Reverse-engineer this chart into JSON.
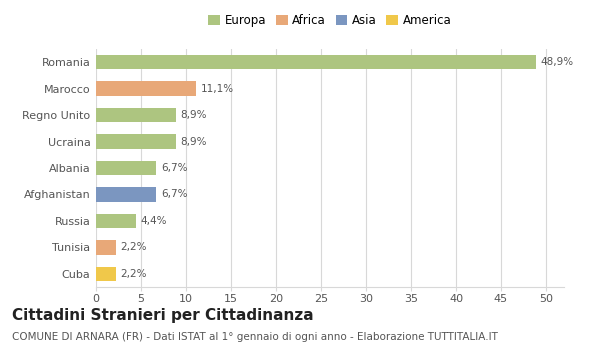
{
  "categories": [
    "Romania",
    "Marocco",
    "Regno Unito",
    "Ucraina",
    "Albania",
    "Afghanistan",
    "Russia",
    "Tunisia",
    "Cuba"
  ],
  "values": [
    48.9,
    11.1,
    8.9,
    8.9,
    6.7,
    6.7,
    4.4,
    2.2,
    2.2
  ],
  "labels": [
    "48,9%",
    "11,1%",
    "8,9%",
    "8,9%",
    "6,7%",
    "6,7%",
    "4,4%",
    "2,2%",
    "2,2%"
  ],
  "bar_colors": [
    "#adc580",
    "#e8a878",
    "#adc580",
    "#adc580",
    "#adc580",
    "#7b96c0",
    "#adc580",
    "#e8a878",
    "#f0c84a"
  ],
  "legend_labels": [
    "Europa",
    "Africa",
    "Asia",
    "America"
  ],
  "legend_colors": [
    "#adc580",
    "#e8a878",
    "#7b96c0",
    "#f0c84a"
  ],
  "xlim": [
    0,
    52
  ],
  "xticks": [
    0,
    5,
    10,
    15,
    20,
    25,
    30,
    35,
    40,
    45,
    50
  ],
  "title": "Cittadini Stranieri per Cittadinanza",
  "subtitle": "COMUNE DI ARNARA (FR) - Dati ISTAT al 1° gennaio di ogni anno - Elaborazione TUTTITALIA.IT",
  "background_color": "#ffffff",
  "grid_color": "#d8d8d8",
  "title_fontsize": 11,
  "subtitle_fontsize": 7.5,
  "bar_label_fontsize": 7.5,
  "ytick_fontsize": 8,
  "xtick_fontsize": 8,
  "legend_fontsize": 8.5
}
